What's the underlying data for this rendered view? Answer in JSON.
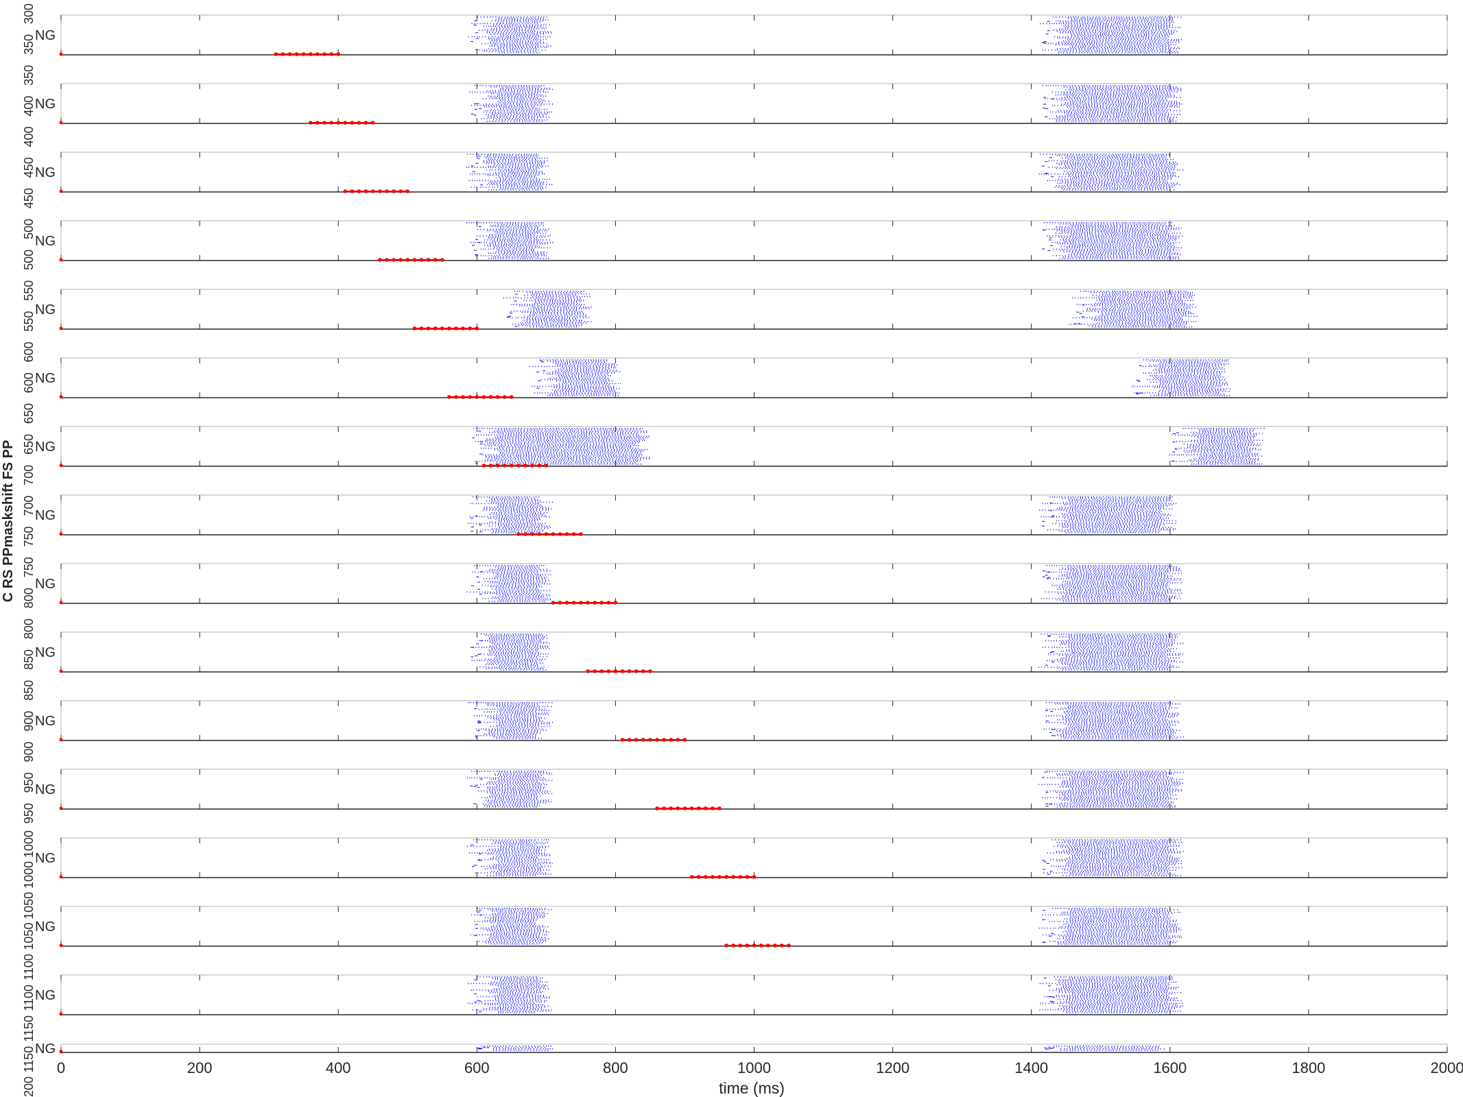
{
  "chart_data": {
    "type": "scatter",
    "description": "Stacked raster plots of spike times",
    "xlabel": "time (ms)",
    "xlim": [
      0,
      2000
    ],
    "xticks": [
      0,
      200,
      400,
      600,
      800,
      1000,
      1200,
      1400,
      1600,
      1800,
      2000
    ],
    "ylabel": "C RS PPmaskshift FS PP",
    "ytick_text": [
      "300",
      "350",
      "350",
      "400",
      "400",
      "450",
      "450",
      "500",
      "500",
      "550",
      "550",
      "600",
      "600",
      "650",
      "650",
      "700",
      "700",
      "750",
      "750",
      "800",
      "800",
      "850",
      "850",
      "900",
      "900",
      "950",
      "950",
      "1000",
      "1000",
      "1050",
      "1050",
      "1100",
      "1100",
      "1150",
      "1150",
      "1200"
    ],
    "colors": {
      "blue": "#0000ff",
      "red": "#ff0000",
      "axis": "#262626"
    },
    "panels": [
      {
        "label": "NG",
        "blue": [
          [
            590,
            720
          ],
          [
            1415,
            1630
          ]
        ],
        "red": {
          "x": [
            310,
            320,
            330,
            340,
            350,
            360,
            370,
            380,
            390,
            400
          ]
        }
      },
      {
        "label": "NG",
        "blue": [
          [
            590,
            720
          ],
          [
            1415,
            1630
          ]
        ],
        "red": {
          "x": [
            360,
            370,
            380,
            390,
            400,
            410,
            420,
            430,
            440,
            450
          ]
        }
      },
      {
        "label": "NG",
        "blue": [
          [
            590,
            720
          ],
          [
            1415,
            1630
          ]
        ],
        "red": {
          "x": [
            410,
            420,
            430,
            440,
            450,
            460,
            470,
            480,
            490,
            500
          ]
        }
      },
      {
        "label": "NG",
        "blue": [
          [
            590,
            720
          ],
          [
            1415,
            1630
          ]
        ],
        "red": {
          "x": [
            460,
            470,
            480,
            490,
            500,
            510,
            520,
            530,
            540,
            550
          ]
        }
      },
      {
        "label": "NG",
        "blue": [
          [
            640,
            780
          ],
          [
            1460,
            1650
          ]
        ],
        "red": {
          "x": [
            510,
            520,
            530,
            540,
            550,
            560,
            570,
            580,
            590,
            600
          ]
        }
      },
      {
        "label": "NG",
        "blue": [
          [
            680,
            820
          ],
          [
            1550,
            1700
          ]
        ],
        "red": {
          "x": [
            560,
            570,
            580,
            590,
            600,
            610,
            620,
            630,
            640,
            650
          ]
        }
      },
      {
        "label": "NG",
        "blue": [
          [
            590,
            860
          ],
          [
            1600,
            1750
          ]
        ],
        "red": {
          "x": [
            610,
            620,
            630,
            640,
            650,
            660,
            670,
            680,
            690,
            700
          ]
        }
      },
      {
        "label": "NG",
        "blue": [
          [
            590,
            720
          ],
          [
            1415,
            1620
          ]
        ],
        "red": {
          "x": [
            660,
            670,
            680,
            690,
            700,
            710,
            720,
            730,
            740,
            750
          ]
        }
      },
      {
        "label": "NG",
        "blue": [
          [
            590,
            720
          ],
          [
            1415,
            1630
          ]
        ],
        "red": {
          "x": [
            710,
            720,
            730,
            740,
            750,
            760,
            770,
            780,
            790,
            800
          ]
        }
      },
      {
        "label": "NG",
        "blue": [
          [
            590,
            720
          ],
          [
            1415,
            1630
          ]
        ],
        "red": {
          "x": [
            760,
            770,
            780,
            790,
            800,
            810,
            820,
            830,
            840,
            850
          ]
        }
      },
      {
        "label": "NG",
        "blue": [
          [
            590,
            720
          ],
          [
            1415,
            1630
          ]
        ],
        "red": {
          "x": [
            810,
            820,
            830,
            840,
            850,
            860,
            870,
            880,
            890,
            900
          ]
        }
      },
      {
        "label": "NG",
        "blue": [
          [
            590,
            720
          ],
          [
            1415,
            1630
          ]
        ],
        "red": {
          "x": [
            860,
            870,
            880,
            890,
            900,
            910,
            920,
            930,
            940,
            950
          ]
        }
      },
      {
        "label": "NG",
        "blue": [
          [
            590,
            720
          ],
          [
            1415,
            1630
          ]
        ],
        "red": {
          "x": [
            910,
            920,
            930,
            940,
            950,
            960,
            970,
            980,
            990,
            1000
          ]
        }
      },
      {
        "label": "NG",
        "blue": [
          [
            590,
            720
          ],
          [
            1415,
            1630
          ]
        ],
        "red": {
          "x": [
            960,
            970,
            980,
            990,
            1000,
            1010,
            1020,
            1030,
            1040,
            1050
          ]
        }
      },
      {
        "label": "NG",
        "blue": [
          [
            590,
            720
          ],
          [
            1415,
            1630
          ]
        ],
        "red": {
          "x": []
        }
      },
      {
        "label": "NG",
        "blue": [
          [
            600,
            730
          ],
          [
            1415,
            1610
          ]
        ],
        "red": {
          "x": []
        }
      }
    ]
  }
}
